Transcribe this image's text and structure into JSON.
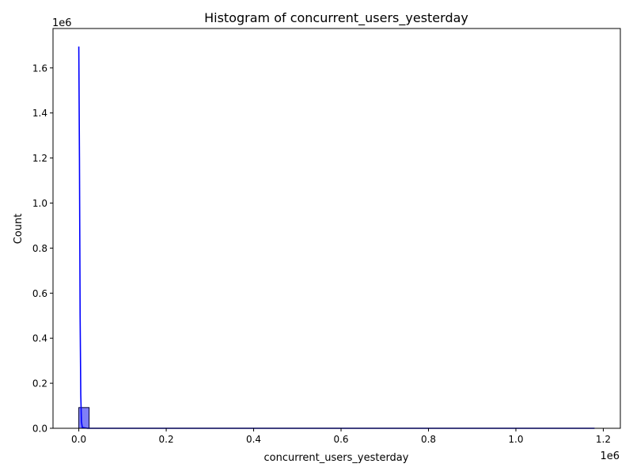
{
  "chart_data": {
    "type": "bar",
    "title": "Histogram of concurrent_users_yesterday",
    "xlabel": "concurrent_users_yesterday",
    "ylabel": "Count",
    "x_offset_text": "1e6",
    "y_offset_text": "1e6",
    "xlim": [
      -0.059,
      1.239
    ],
    "ylim": [
      0,
      1.775
    ],
    "x_unit_multiplier": 1000000,
    "y_unit_multiplier": 1000000,
    "x_ticks": [
      {
        "value": 0.0,
        "label": "0.0"
      },
      {
        "value": 0.2,
        "label": "0.2"
      },
      {
        "value": 0.4,
        "label": "0.4"
      },
      {
        "value": 0.6,
        "label": "0.6"
      },
      {
        "value": 0.8,
        "label": "0.8"
      },
      {
        "value": 1.0,
        "label": "1.0"
      },
      {
        "value": 1.2,
        "label": "1.2"
      }
    ],
    "y_ticks": [
      {
        "value": 0.0,
        "label": "0.0"
      },
      {
        "value": 0.2,
        "label": "0.2"
      },
      {
        "value": 0.4,
        "label": "0.4"
      },
      {
        "value": 0.6,
        "label": "0.6"
      },
      {
        "value": 0.8,
        "label": "0.8"
      },
      {
        "value": 1.0,
        "label": "1.0"
      },
      {
        "value": 1.2,
        "label": "1.2"
      },
      {
        "value": 1.4,
        "label": "1.4"
      },
      {
        "value": 1.6,
        "label": "1.6"
      }
    ],
    "bins": [
      {
        "x0": 0.0,
        "x1": 0.0236,
        "count": 0.092
      }
    ],
    "kde": {
      "x": [
        0.0,
        0.0015,
        0.003,
        0.0045,
        0.006,
        0.008,
        0.02,
        0.05,
        0.2,
        0.5,
        0.8,
        1.0,
        1.18
      ],
      "y": [
        1.695,
        1.2,
        0.5,
        0.15,
        0.03,
        0.004,
        0.0,
        0.0,
        0.0,
        0.0,
        0.0,
        0.0,
        0.0
      ]
    },
    "colors": {
      "bar_fill": "#7f7ff7",
      "bar_edge": "#000033",
      "kde_line": "#0000ff",
      "axes": "#000000"
    },
    "grid": false,
    "legend": "none"
  }
}
